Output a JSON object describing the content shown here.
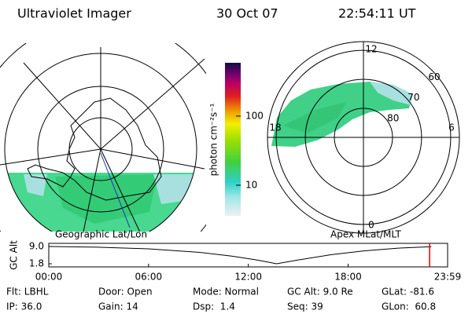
{
  "header": {
    "title": "Ultraviolet Imager",
    "date": "30 Oct 07",
    "time": "22:54:11 UT"
  },
  "geo_map": {
    "label": "Geographic Lat/Lon"
  },
  "colorbar": {
    "label": "photon cm⁻²s⁻¹",
    "log_scale": true,
    "lim": [
      3.6,
      590
    ],
    "ticks": [
      10,
      100
    ]
  },
  "polar_map": {
    "label": "Apex MLat/MLT",
    "lat_lim": [
      90,
      57
    ],
    "lat_ticks": [
      80,
      70,
      60
    ],
    "mlt_ticks": [
      12,
      6,
      0,
      18
    ]
  },
  "altitude": {
    "type": "line",
    "ylabel": "GC Alt",
    "color": "#000000",
    "x": [
      0,
      3,
      6,
      9,
      11,
      12.5,
      13.7,
      15,
      17,
      19,
      21,
      23
    ],
    "values": [
      9.0,
      8.7,
      8.0,
      6.6,
      5.0,
      3.4,
      1.8,
      3.4,
      5.6,
      7.2,
      8.3,
      8.9
    ],
    "xlim": [
      0,
      23.983
    ],
    "ylim": [
      0.5,
      10.3
    ],
    "yticks": [
      {
        "value": 9,
        "label": "9.0"
      },
      1.8
    ],
    "xticks": [
      {
        "value": 0,
        "label": "00:00"
      },
      {
        "value": 6,
        "label": "06:00"
      },
      {
        "value": 12,
        "label": "12:00"
      },
      {
        "value": 18,
        "label": "18:00"
      },
      {
        "value": 23.983,
        "label": "23:59"
      }
    ],
    "marker": {
      "value": 22.9,
      "color": "#e00000"
    }
  },
  "info": {
    "rows": [
      [
        "Flt: LBHL",
        "Door: Open",
        "Mode: Normal",
        "GC Alt: 9.0 Re",
        "GLat: -81.6"
      ],
      [
        "IP: 36.0",
        "Gain: 14",
        "Dsp:  1.4",
        "Seq: 39",
        "GLon:  60.8"
      ]
    ]
  }
}
